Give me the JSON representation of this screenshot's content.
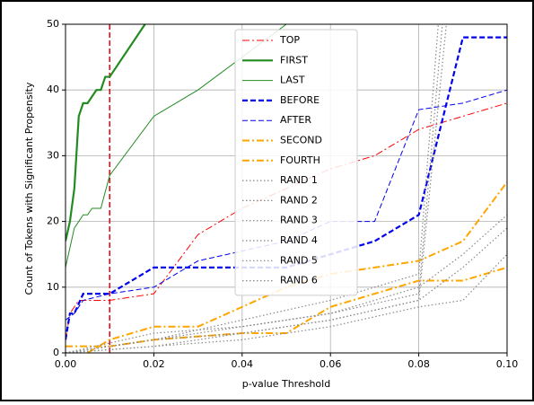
{
  "chart_data": {
    "type": "line",
    "xlabel": "p-value Threshold",
    "ylabel": "Count of Tokens with Significant Propensity",
    "xlim": [
      0,
      0.1
    ],
    "ylim": [
      0,
      50
    ],
    "xticks": [
      {
        "value": 0,
        "label": "0.00"
      },
      {
        "value": 0.02,
        "label": "0.02"
      },
      {
        "value": 0.04,
        "label": "0.04"
      },
      {
        "value": 0.06,
        "label": "0.06"
      },
      {
        "value": 0.08,
        "label": "0.08"
      },
      {
        "value": 0.1,
        "label": "0.10"
      }
    ],
    "yticks": [
      0,
      10,
      20,
      30,
      40,
      50
    ],
    "grid": true,
    "legend": "upper center",
    "vline": {
      "x": 0.01,
      "color": "#e8000b",
      "style": "dashed"
    },
    "series": [
      {
        "name": "TOP",
        "color": "#ff0000",
        "style": "dashdot",
        "width": 1,
        "x": [
          0,
          0.001,
          0.003,
          0.01,
          0.02,
          0.03,
          0.04,
          0.06,
          0.07,
          0.08,
          0.1
        ],
        "values": [
          2,
          6,
          8,
          8,
          9,
          18,
          22,
          28,
          30,
          34,
          38
        ]
      },
      {
        "name": "FIRST",
        "color": "#228b22",
        "style": "solid",
        "width": 2.2,
        "x": [
          0,
          0.001,
          0.002,
          0.003,
          0.004,
          0.005,
          0.006,
          0.007,
          0.008,
          0.009,
          0.01,
          0.02
        ],
        "values": [
          17,
          20,
          25,
          36,
          38,
          38,
          39,
          40,
          40,
          42,
          42,
          52
        ]
      },
      {
        "name": "LAST",
        "color": "#228b22",
        "style": "solid",
        "width": 1,
        "x": [
          0,
          0.001,
          0.002,
          0.004,
          0.005,
          0.006,
          0.008,
          0.01,
          0.02,
          0.03,
          0.05
        ],
        "values": [
          13,
          16,
          19,
          21,
          21,
          22,
          22,
          27,
          36,
          40,
          50
        ]
      },
      {
        "name": "BEFORE",
        "color": "#0000ee",
        "style": "dashed",
        "width": 2.2,
        "x": [
          0,
          0.001,
          0.002,
          0.004,
          0.01,
          0.02,
          0.03,
          0.05,
          0.06,
          0.07,
          0.08,
          0.09,
          0.1
        ],
        "values": [
          2,
          6,
          6,
          9,
          9,
          13,
          13,
          13,
          15,
          17,
          21,
          48,
          48
        ]
      },
      {
        "name": "AFTER",
        "color": "#0000ee",
        "style": "dashed",
        "width": 1,
        "x": [
          0,
          0.002,
          0.004,
          0.01,
          0.02,
          0.03,
          0.05,
          0.06,
          0.07,
          0.08,
          0.09,
          0.1
        ],
        "values": [
          5,
          6,
          8,
          9,
          10,
          14,
          17,
          20,
          20,
          37,
          38,
          40
        ]
      },
      {
        "name": "SECOND",
        "color": "#ffa500",
        "style": "dashdot",
        "width": 2,
        "x": [
          0,
          0.01,
          0.02,
          0.04,
          0.05,
          0.06,
          0.07,
          0.08,
          0.09,
          0.1
        ],
        "values": [
          1,
          1,
          2,
          3,
          3,
          7,
          9,
          11,
          11,
          13
        ]
      },
      {
        "name": "FOURTH",
        "color": "#ffa500",
        "style": "dashdot",
        "width": 2,
        "x": [
          0.005,
          0.01,
          0.02,
          0.03,
          0.04,
          0.05,
          0.06,
          0.07,
          0.08,
          0.09,
          0.1
        ],
        "values": [
          0,
          2,
          4,
          4,
          7,
          10,
          12,
          13,
          14,
          17,
          26
        ]
      },
      {
        "name": "RAND 1",
        "color": "#888888",
        "style": "dotted",
        "width": 1.2,
        "x": [
          0,
          0.02,
          0.04,
          0.06,
          0.08,
          0.087
        ],
        "values": [
          0,
          1,
          3,
          5,
          8,
          55
        ]
      },
      {
        "name": "RAND 2",
        "color": "#888888",
        "style": "dotted",
        "width": 1.2,
        "x": [
          0,
          0.02,
          0.04,
          0.06,
          0.08,
          0.086
        ],
        "values": [
          0,
          2,
          4,
          6,
          9,
          55
        ]
      },
      {
        "name": "RAND 3",
        "color": "#888888",
        "style": "dotted",
        "width": 1.2,
        "x": [
          0,
          0.02,
          0.04,
          0.06,
          0.08,
          0.085
        ],
        "values": [
          0,
          2,
          5,
          8,
          12,
          55
        ]
      },
      {
        "name": "RAND 4",
        "color": "#888888",
        "style": "dotted",
        "width": 1.2,
        "x": [
          0,
          0.02,
          0.04,
          0.06,
          0.08,
          0.09,
          0.1
        ],
        "values": [
          0,
          1,
          2,
          4,
          7,
          8,
          15
        ]
      },
      {
        "name": "RAND 5",
        "color": "#888888",
        "style": "dotted",
        "width": 1.2,
        "x": [
          0,
          0.02,
          0.04,
          0.06,
          0.08,
          0.09,
          0.1
        ],
        "values": [
          0,
          2,
          3,
          5,
          8,
          13,
          19
        ]
      },
      {
        "name": "RAND 6",
        "color": "#888888",
        "style": "dotted",
        "width": 1.2,
        "x": [
          0,
          0.02,
          0.04,
          0.06,
          0.08,
          0.09,
          0.1
        ],
        "values": [
          0,
          3,
          4,
          6,
          10,
          15,
          21
        ]
      }
    ]
  }
}
